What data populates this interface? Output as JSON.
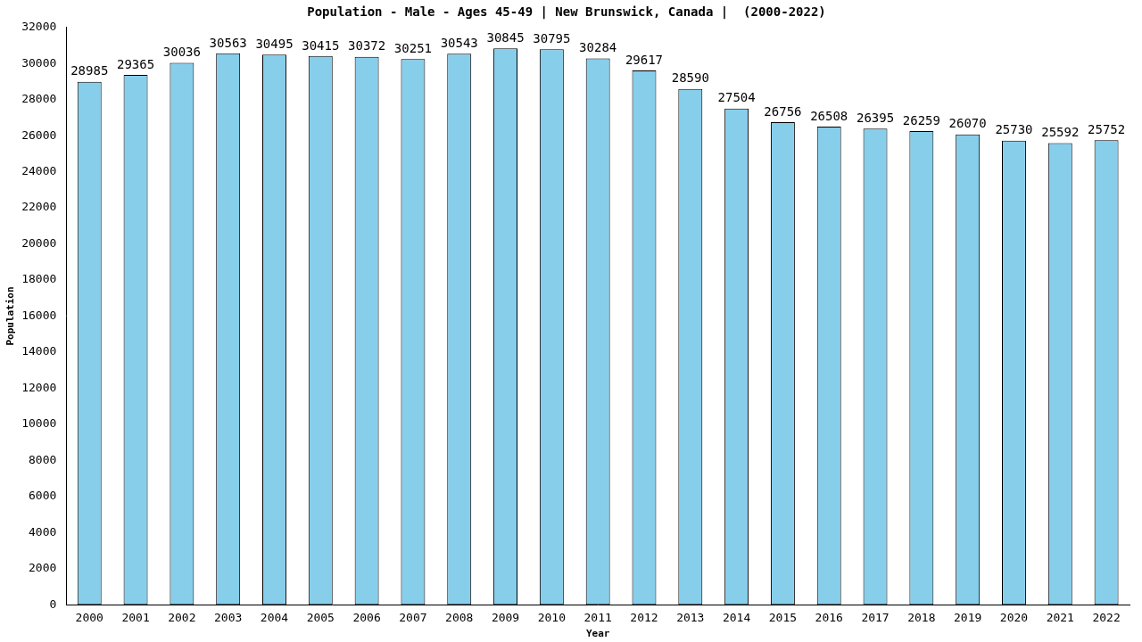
{
  "chart_data": {
    "type": "bar",
    "title": "Population - Male - Ages 45-49 | New Brunswick, Canada |  (2000-2022)",
    "x_label": "Year",
    "y_label": "Population",
    "categories": [
      "2000",
      "2001",
      "2002",
      "2003",
      "2004",
      "2005",
      "2006",
      "2007",
      "2008",
      "2009",
      "2010",
      "2011",
      "2012",
      "2013",
      "2014",
      "2015",
      "2016",
      "2017",
      "2018",
      "2019",
      "2020",
      "2021",
      "2022"
    ],
    "values": [
      28985,
      29365,
      30036,
      30563,
      30495,
      30415,
      30372,
      30251,
      30543,
      30845,
      30795,
      30284,
      29617,
      28590,
      27504,
      26756,
      26508,
      26395,
      26259,
      26070,
      25730,
      25592,
      25752
    ],
    "color": "#87ceeb",
    "ylim": [
      0,
      32000
    ],
    "yticks": [
      0,
      2000,
      4000,
      6000,
      8000,
      10000,
      12000,
      14000,
      16000,
      18000,
      20000,
      22000,
      24000,
      26000,
      28000,
      30000,
      32000
    ],
    "grid": false,
    "data_labels": true
  }
}
